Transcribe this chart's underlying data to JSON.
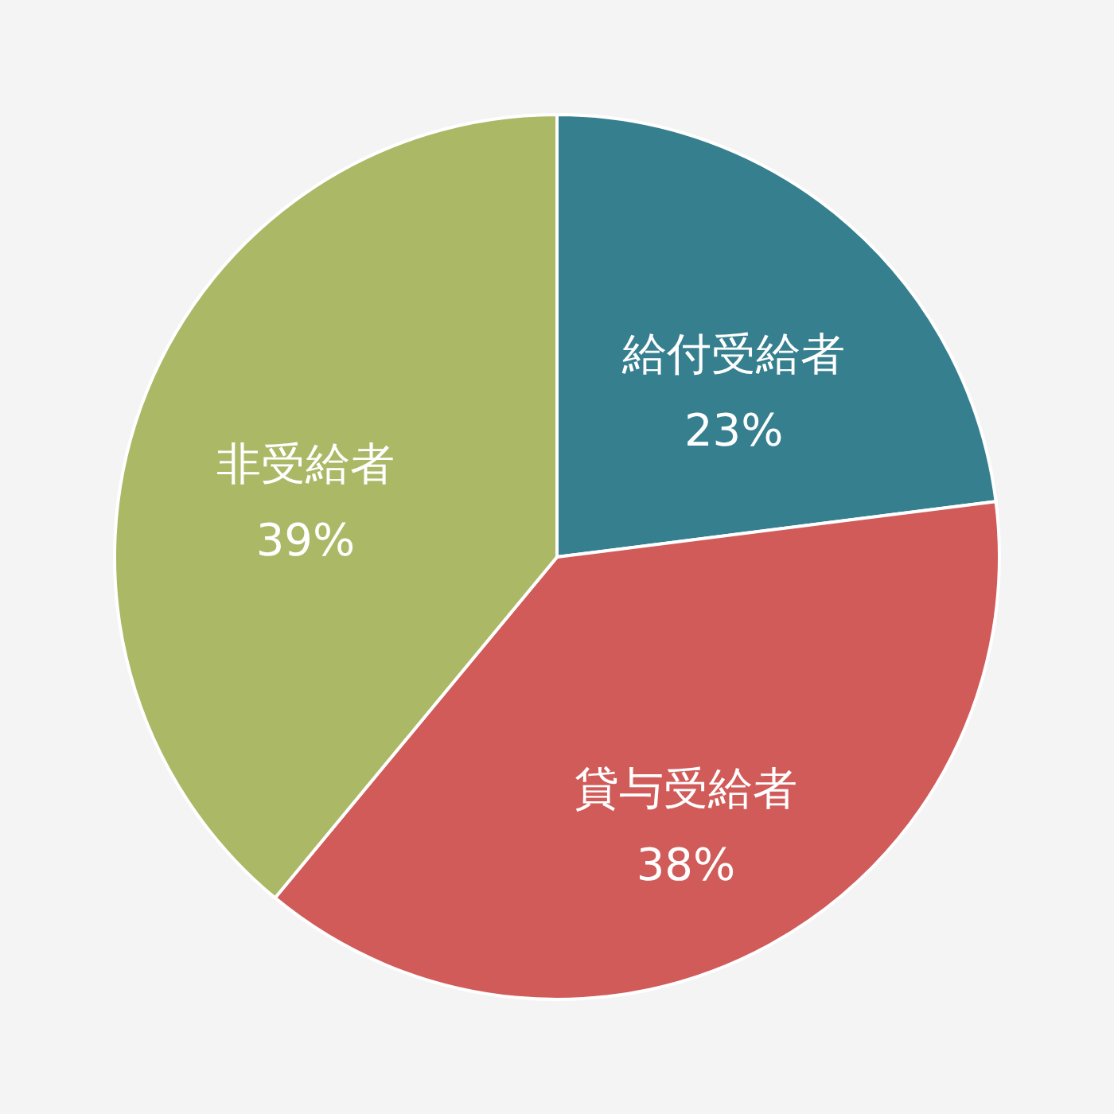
{
  "chart_data": {
    "type": "pie",
    "categories": [
      "給付受給者",
      "貸与受給者",
      "非受給者"
    ],
    "values": [
      23,
      38,
      39
    ],
    "colors": [
      "#357f8f",
      "#d05b59",
      "#abb866"
    ],
    "value_labels": [
      "23%",
      "38%",
      "39%"
    ]
  }
}
